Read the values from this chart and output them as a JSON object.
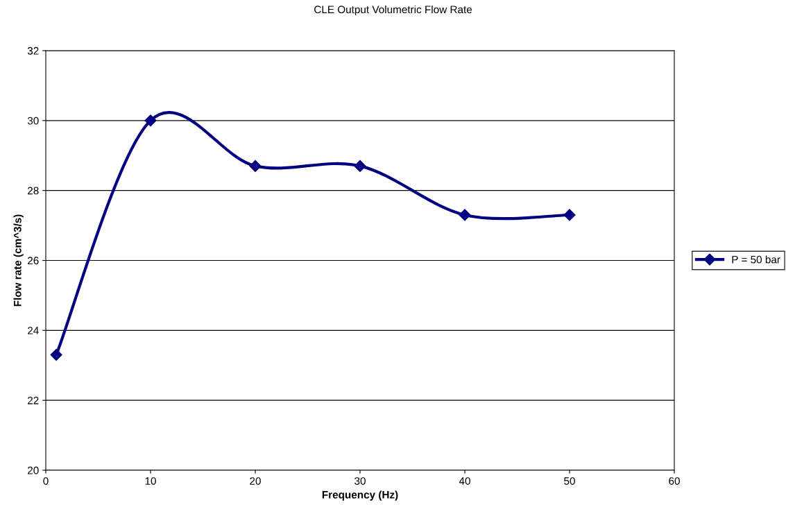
{
  "chart_data": {
    "type": "line",
    "title": "CLE Output Volumetric Flow Rate",
    "xlabel": "Frequency (Hz)",
    "ylabel": "Flow rate (cm^3/s)",
    "x": [
      1,
      10,
      20,
      30,
      40,
      50
    ],
    "series": [
      {
        "name": "P = 50 bar",
        "color": "#000080",
        "values": [
          23.3,
          30,
          28.7,
          28.7,
          27.3,
          27.3
        ]
      }
    ],
    "xlim": [
      0,
      60
    ],
    "xticks": [
      0,
      10,
      20,
      30,
      40,
      50,
      60
    ],
    "ylim": [
      20,
      32
    ],
    "yticks": [
      20,
      22,
      24,
      26,
      28,
      30,
      32
    ],
    "grid": "y",
    "legend": "right",
    "marker": "diamond",
    "line_style": "solid"
  }
}
